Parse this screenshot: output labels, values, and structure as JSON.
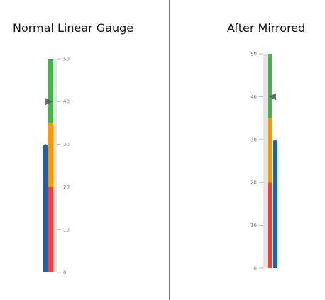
{
  "titles": {
    "normal": "Normal Linear Gauge",
    "mirrored": "After Mirrored"
  },
  "colors": {
    "track": "#e4e4e4",
    "bar": "#1565c0",
    "pointer": "#555555",
    "tick": "#bbbbbb",
    "tick_label": "#777777"
  },
  "chart_data": [
    {
      "type": "linear-gauge",
      "title": "Normal Linear Gauge",
      "mirrored": false,
      "range": [
        0,
        50
      ],
      "ticks": [
        0,
        10,
        20,
        30,
        40,
        50
      ],
      "bar_value": 30,
      "pointer_value": 40,
      "ranges": [
        {
          "from": 0,
          "to": 20,
          "color": "#f44336"
        },
        {
          "from": 20,
          "to": 35,
          "color": "#ff9800"
        },
        {
          "from": 35,
          "to": 50,
          "color": "#4caf50"
        }
      ]
    },
    {
      "type": "linear-gauge",
      "title": "After Mirrored",
      "mirrored": true,
      "range": [
        0,
        50
      ],
      "ticks": [
        0,
        10,
        20,
        30,
        40,
        50
      ],
      "bar_value": 30,
      "pointer_value": 40,
      "ranges": [
        {
          "from": 0,
          "to": 20,
          "color": "#f44336"
        },
        {
          "from": 20,
          "to": 35,
          "color": "#ff9800"
        },
        {
          "from": 35,
          "to": 50,
          "color": "#4caf50"
        }
      ]
    }
  ]
}
